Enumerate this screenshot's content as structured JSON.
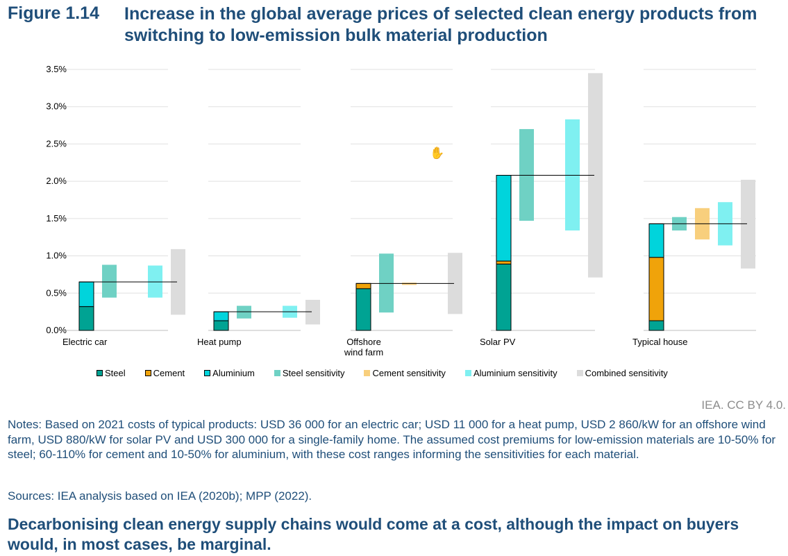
{
  "figure": {
    "label": "Figure 1.14",
    "title": "Increase in the global average prices of selected clean energy products from switching to low-emission bulk material production"
  },
  "chart_data": {
    "type": "bar",
    "subtype": "stacked bar with sensitivity range bars",
    "ylim": [
      0,
      3.5
    ],
    "y_ticks": [
      "0.0%",
      "0.5%",
      "1.0%",
      "1.5%",
      "2.0%",
      "2.5%",
      "3.0%",
      "3.5%"
    ],
    "grid": true,
    "legend_position": "bottom",
    "categories": [
      "Electric car",
      "Heat pump",
      "Offshore wind farm",
      "Solar PV",
      "Typical house"
    ],
    "category_labels": [
      [
        "Electric car"
      ],
      [
        "Heat pump"
      ],
      [
        "Offshore",
        "wind farm"
      ],
      [
        "Solar PV"
      ],
      [
        "Typical house"
      ]
    ],
    "stacked_series": [
      {
        "name": "Steel",
        "color": "#00a393",
        "values": [
          0.32,
          0.13,
          0.56,
          0.89,
          0.13
        ]
      },
      {
        "name": "Cement",
        "color": "#f0a30a",
        "values": [
          0.0,
          0.0,
          0.07,
          0.04,
          0.85
        ]
      },
      {
        "name": "Aluminium",
        "color": "#00d4dc",
        "values": [
          0.33,
          0.12,
          0.0,
          1.15,
          0.45
        ]
      }
    ],
    "totals": [
      0.65,
      0.25,
      0.63,
      2.08,
      1.43
    ],
    "sensitivity_series": [
      {
        "name": "Steel sensitivity",
        "color": "#6fd1c4",
        "ranges": [
          [
            0.44,
            0.88
          ],
          [
            0.16,
            0.33
          ],
          [
            0.24,
            1.03
          ],
          [
            1.47,
            2.7
          ],
          [
            1.34,
            1.52
          ]
        ]
      },
      {
        "name": "Cement sensitivity",
        "color": "#f8cf7d",
        "ranges": [
          null,
          null,
          [
            0.61,
            0.64
          ],
          null,
          [
            1.22,
            1.64
          ]
        ]
      },
      {
        "name": "Aluminium sensitivity",
        "color": "#7ff0f1",
        "ranges": [
          [
            0.44,
            0.87
          ],
          [
            0.17,
            0.33
          ],
          null,
          [
            1.34,
            2.83
          ],
          [
            1.14,
            1.72
          ]
        ]
      },
      {
        "name": "Combined sensitivity",
        "color": "#dcdcdc",
        "ranges": [
          [
            0.21,
            1.09
          ],
          [
            0.08,
            0.41
          ],
          [
            0.22,
            1.04
          ],
          [
            0.71,
            3.45
          ],
          [
            0.83,
            2.02
          ]
        ]
      }
    ]
  },
  "credit": "IEA. CC BY 4.0.",
  "notes": "Notes: Based on 2021 costs of typical products: USD 36 000 for an electric car; USD 11 000 for a heat pump, USD 2 860/kW for an offshore wind farm, USD 880/kW for solar PV and USD 300 000 for a single-family home. The assumed cost premiums for low-emission materials are 10-50% for steel; 60-110% for cement and 10-50% for aluminium, with these cost ranges informing the sensitivities for each material.",
  "sources": "Sources: IEA analysis based on IEA (2020b); MPP (2022).",
  "takeaway": "Decarbonising clean energy supply chains would come at a cost, although the impact on buyers would, in most cases, be marginal.",
  "icons": {
    "cursor": "hand-pointer-icon"
  }
}
